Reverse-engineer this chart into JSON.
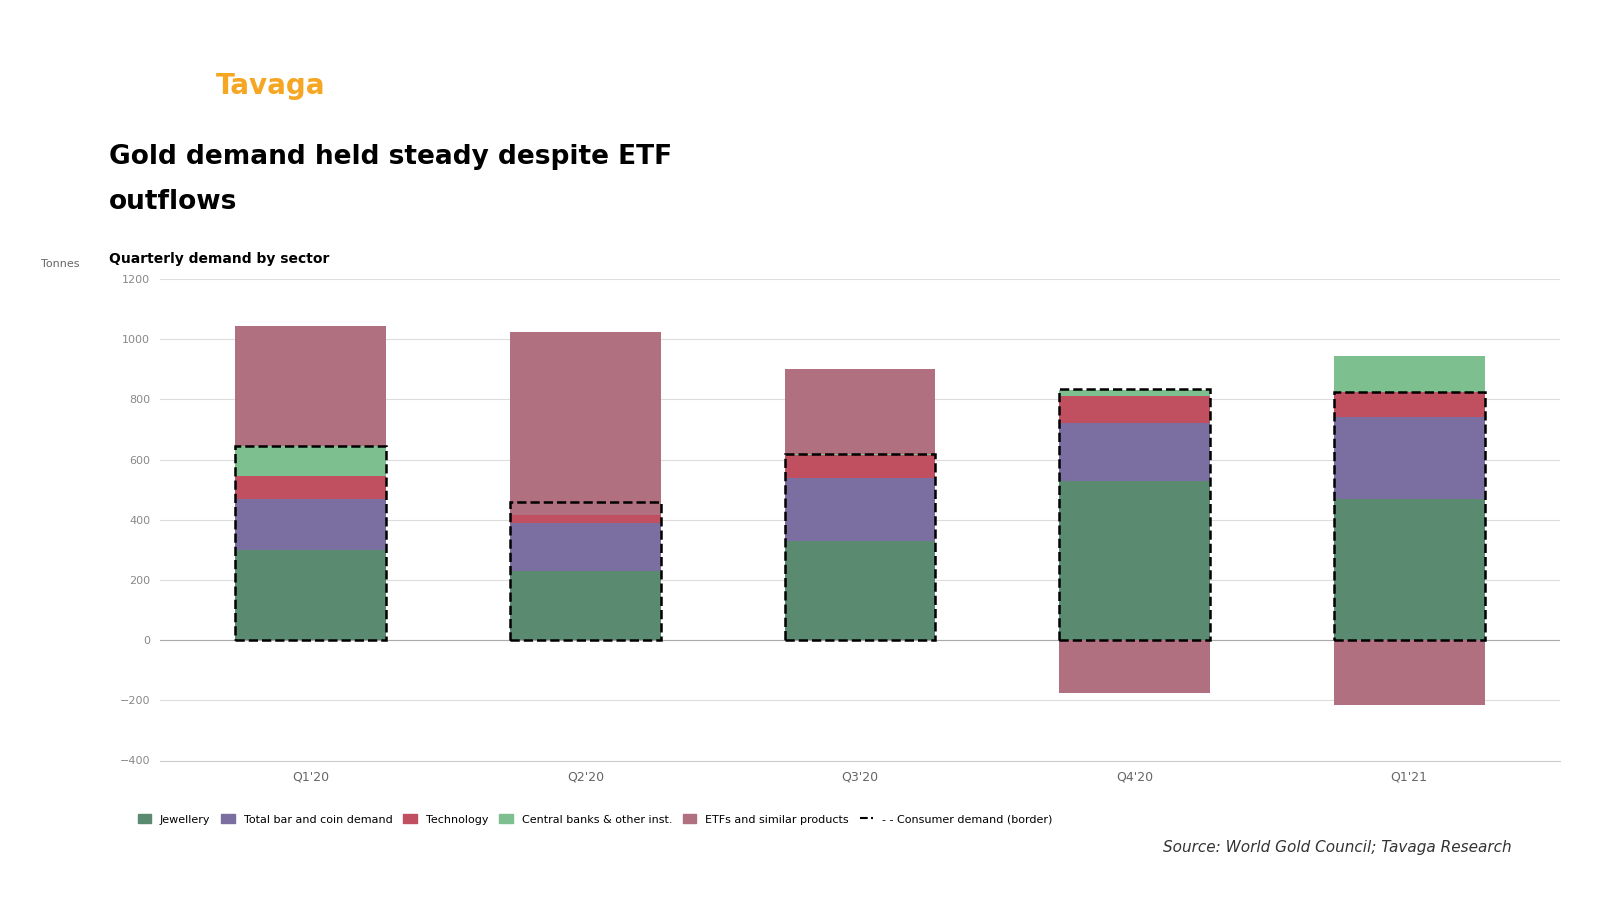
{
  "quarters": [
    "Q1'20",
    "Q2'20",
    "Q3'20",
    "Q4'20",
    "Q1'21"
  ],
  "jewellery": [
    300,
    230,
    330,
    530,
    470
  ],
  "bar_coin": [
    170,
    160,
    210,
    190,
    270
  ],
  "technology": [
    75,
    55,
    75,
    90,
    85
  ],
  "central_banks": [
    100,
    -30,
    5,
    20,
    120
  ],
  "etfs": [
    400,
    610,
    280,
    -175,
    -215
  ],
  "consumer_demand_border": [
    645,
    460,
    620,
    835,
    825
  ],
  "colors": {
    "jewellery": "#5a8a70",
    "bar_coin": "#7b6ea0",
    "technology": "#c05060",
    "central_banks": "#7dbf8e",
    "etfs": "#b07080"
  },
  "title_line1": "Gold demand held steady despite ETF",
  "title_line2": "outflows",
  "subtitle": "Quarterly demand by sector",
  "ylabel": "Tonnes",
  "ylim": [
    -400,
    1200
  ],
  "yticks": [
    -400,
    -200,
    0,
    200,
    400,
    600,
    800,
    1000,
    1200
  ],
  "source_text": "Source: World Gold Council; Tavaga Research",
  "legend_items": [
    {
      "label": "Jewellery",
      "color": "#5a8a70",
      "style": "patch"
    },
    {
      "label": "Total bar and coin demand",
      "color": "#7b6ea0",
      "style": "patch"
    },
    {
      "label": "Technology",
      "color": "#c05060",
      "style": "patch"
    },
    {
      "label": "Central banks & other inst.",
      "color": "#7dbf8e",
      "style": "patch"
    },
    {
      "label": "ETFs and similar products",
      "color": "#b07080",
      "style": "patch"
    },
    {
      "label": "- - Consumer demand (border)",
      "color": "#000000",
      "style": "dashed"
    }
  ],
  "tavaga_text": "Tavaga",
  "tavaga_color": "#f5a623",
  "logo_bg_color": "#1a6b35",
  "underline_color": "#8B7536",
  "bar_width": 0.55
}
